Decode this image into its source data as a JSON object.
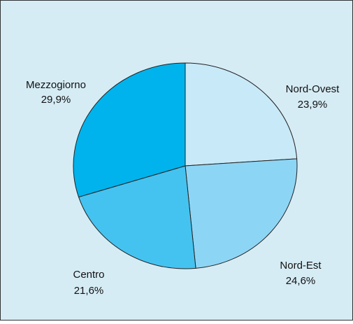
{
  "chart_data": {
    "type": "pie",
    "categories": [
      "Nord-Ovest",
      "Nord-Est",
      "Centro",
      "Mezzogiorno"
    ],
    "values": [
      23.9,
      24.6,
      21.6,
      29.9
    ],
    "value_labels": [
      "23,9%",
      "24,6%",
      "21,6%",
      "29,9%"
    ],
    "colors": [
      "#c8e9f8",
      "#8dd5f5",
      "#45c3f0",
      "#00b3ec"
    ]
  }
}
